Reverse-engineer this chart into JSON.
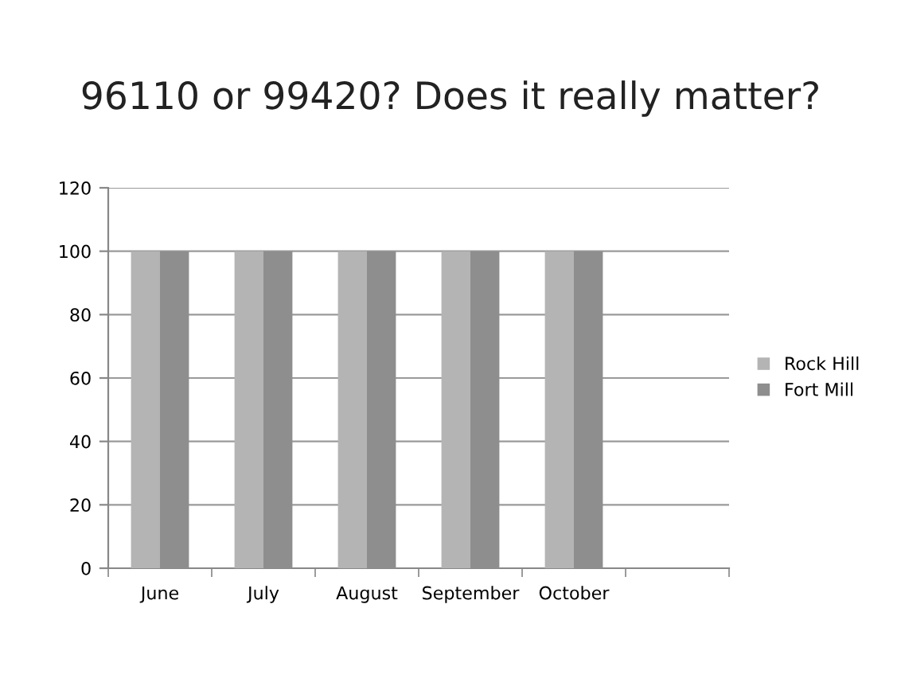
{
  "chart_data": {
    "type": "bar",
    "title": "96110 or 99420? Does it really matter?",
    "categories": [
      "June",
      "July",
      "August",
      "September",
      "October",
      null
    ],
    "series": [
      {
        "name": "Rock Hill",
        "color": "#b4b4b4",
        "values": [
          100,
          100,
          100,
          100,
          100,
          null
        ]
      },
      {
        "name": "Fort Mill",
        "color": "#8e8e8e",
        "values": [
          100,
          100,
          100,
          100,
          100,
          null
        ]
      }
    ],
    "ylim": [
      0,
      120
    ],
    "yticks": [
      0,
      20,
      40,
      60,
      80,
      100,
      120
    ],
    "grid": "y",
    "legend": "right"
  }
}
